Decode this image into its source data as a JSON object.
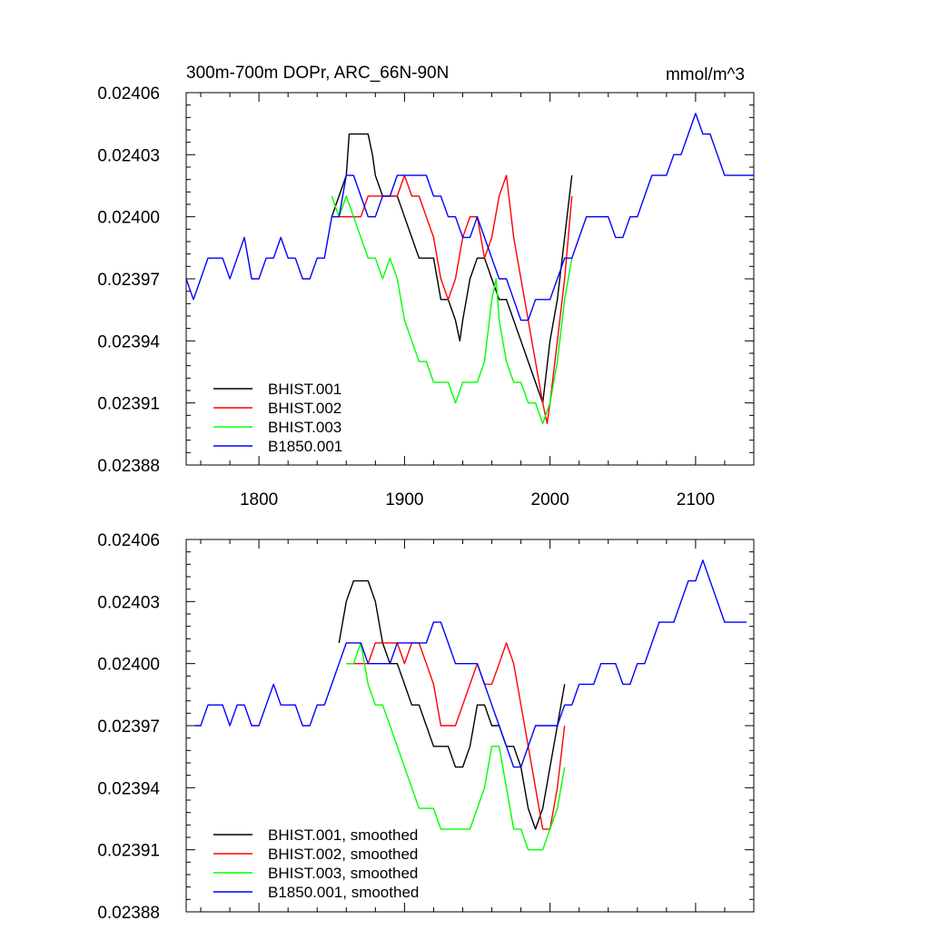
{
  "chart_data": [
    {
      "type": "line",
      "title": "300m-700m DOPr, ARC_66N-90N",
      "units": "mmol/m^3",
      "xlim": [
        1750,
        2140
      ],
      "ylim": [
        0.02388,
        0.02406
      ],
      "xticks": [
        1800,
        1900,
        2000,
        2100
      ],
      "xtick_labels": [
        "1800",
        "1900",
        "2000",
        "2100"
      ],
      "yticks": [
        0.02388,
        0.02391,
        0.02394,
        0.02397,
        0.024,
        0.02403,
        0.02406
      ],
      "ytick_labels": [
        "0.02388",
        "0.02391",
        "0.02394",
        "0.02397",
        "0.02400",
        "0.02403",
        "0.02406"
      ],
      "legend_position": "bottom-left",
      "series": [
        {
          "name": "BHIST.001",
          "color": "#000000",
          "x": [
            1850,
            1855,
            1860,
            1862,
            1865,
            1870,
            1875,
            1878,
            1880,
            1885,
            1890,
            1895,
            1900,
            1905,
            1910,
            1915,
            1920,
            1925,
            1930,
            1935,
            1938,
            1940,
            1945,
            1950,
            1955,
            1960,
            1965,
            1970,
            1975,
            1980,
            1985,
            1990,
            1995,
            2000,
            2005,
            2010,
            2015
          ],
          "y": [
            0.024,
            0.02401,
            0.02402,
            0.02404,
            0.02404,
            0.02404,
            0.02404,
            0.02403,
            0.02402,
            0.02401,
            0.02401,
            0.02401,
            0.024,
            0.02399,
            0.02398,
            0.02398,
            0.02398,
            0.02396,
            0.02396,
            0.02395,
            0.02394,
            0.02395,
            0.02397,
            0.02398,
            0.02398,
            0.02397,
            0.02396,
            0.02396,
            0.02395,
            0.02394,
            0.02393,
            0.02392,
            0.02391,
            0.02394,
            0.02396,
            0.02399,
            0.02402
          ]
        },
        {
          "name": "BHIST.002",
          "color": "#ff0000",
          "x": [
            1855,
            1860,
            1865,
            1870,
            1875,
            1880,
            1885,
            1890,
            1895,
            1900,
            1905,
            1910,
            1915,
            1920,
            1925,
            1930,
            1935,
            1940,
            1945,
            1950,
            1955,
            1960,
            1965,
            1970,
            1975,
            1980,
            1985,
            1990,
            1995,
            1998,
            2000,
            2005,
            2010,
            2015
          ],
          "y": [
            0.024,
            0.024,
            0.024,
            0.024,
            0.02401,
            0.02401,
            0.02401,
            0.02401,
            0.02401,
            0.02402,
            0.02401,
            0.02401,
            0.024,
            0.02399,
            0.02397,
            0.02396,
            0.02397,
            0.02399,
            0.024,
            0.024,
            0.02398,
            0.02399,
            0.02401,
            0.02402,
            0.02399,
            0.02397,
            0.02395,
            0.02393,
            0.02391,
            0.0239,
            0.02391,
            0.02394,
            0.02397,
            0.02401
          ]
        },
        {
          "name": "BHIST.003",
          "color": "#00ff00",
          "x": [
            1850,
            1855,
            1860,
            1865,
            1870,
            1875,
            1880,
            1885,
            1890,
            1895,
            1900,
            1905,
            1910,
            1915,
            1920,
            1925,
            1930,
            1935,
            1940,
            1945,
            1950,
            1955,
            1960,
            1963,
            1965,
            1970,
            1975,
            1980,
            1985,
            1990,
            1995,
            2000,
            2005,
            2010,
            2015
          ],
          "y": [
            0.02401,
            0.024,
            0.02401,
            0.024,
            0.02399,
            0.02398,
            0.02398,
            0.02397,
            0.02398,
            0.02397,
            0.02395,
            0.02394,
            0.02393,
            0.02393,
            0.02392,
            0.02392,
            0.02392,
            0.02391,
            0.02392,
            0.02392,
            0.02392,
            0.02393,
            0.02396,
            0.02397,
            0.02395,
            0.02393,
            0.02392,
            0.02392,
            0.02391,
            0.02391,
            0.0239,
            0.02391,
            0.02393,
            0.02396,
            0.02398
          ]
        },
        {
          "name": "B1850.001",
          "color": "#0000ff",
          "x": [
            1750,
            1755,
            1760,
            1765,
            1770,
            1775,
            1780,
            1785,
            1790,
            1795,
            1800,
            1805,
            1810,
            1815,
            1820,
            1825,
            1830,
            1835,
            1840,
            1845,
            1850,
            1855,
            1860,
            1865,
            1870,
            1875,
            1880,
            1885,
            1890,
            1895,
            1900,
            1905,
            1910,
            1915,
            1920,
            1925,
            1930,
            1935,
            1940,
            1945,
            1950,
            1955,
            1960,
            1965,
            1970,
            1975,
            1980,
            1985,
            1990,
            1995,
            2000,
            2005,
            2010,
            2015,
            2020,
            2025,
            2030,
            2035,
            2040,
            2045,
            2050,
            2055,
            2060,
            2065,
            2070,
            2075,
            2080,
            2085,
            2090,
            2095,
            2100,
            2105,
            2110,
            2115,
            2120,
            2125,
            2130,
            2135,
            2140
          ],
          "y": [
            0.02397,
            0.02396,
            0.02397,
            0.02398,
            0.02398,
            0.02398,
            0.02397,
            0.02398,
            0.02399,
            0.02397,
            0.02397,
            0.02398,
            0.02398,
            0.02399,
            0.02398,
            0.02398,
            0.02397,
            0.02397,
            0.02398,
            0.02398,
            0.024,
            0.024,
            0.02402,
            0.02402,
            0.02401,
            0.024,
            0.024,
            0.02401,
            0.02401,
            0.02402,
            0.02402,
            0.02402,
            0.02402,
            0.02402,
            0.02401,
            0.02401,
            0.024,
            0.024,
            0.02399,
            0.02399,
            0.024,
            0.02399,
            0.02398,
            0.02397,
            0.02397,
            0.02396,
            0.02395,
            0.02395,
            0.02396,
            0.02396,
            0.02396,
            0.02397,
            0.02398,
            0.02398,
            0.02399,
            0.024,
            0.024,
            0.024,
            0.024,
            0.02399,
            0.02399,
            0.024,
            0.024,
            0.02401,
            0.02402,
            0.02402,
            0.02402,
            0.02403,
            0.02403,
            0.02404,
            0.02405,
            0.02404,
            0.02404,
            0.02403,
            0.02402,
            0.02402,
            0.02402,
            0.02402,
            0.02402
          ]
        }
      ]
    },
    {
      "type": "line",
      "title": "",
      "units": "",
      "xlim": [
        1750,
        2140
      ],
      "ylim": [
        0.02388,
        0.02406
      ],
      "xticks": [
        1800,
        1900,
        2000,
        2100
      ],
      "xtick_labels": [],
      "yticks": [
        0.02388,
        0.02391,
        0.02394,
        0.02397,
        0.024,
        0.02403,
        0.02406
      ],
      "ytick_labels": [
        "0.02388",
        "0.02391",
        "0.02394",
        "0.02397",
        "0.02400",
        "0.02403",
        "0.02406"
      ],
      "legend_position": "bottom-left",
      "series": [
        {
          "name": "BHIST.001, smoothed",
          "color": "#000000",
          "x": [
            1855,
            1860,
            1865,
            1870,
            1875,
            1880,
            1885,
            1890,
            1895,
            1900,
            1905,
            1910,
            1915,
            1920,
            1925,
            1930,
            1935,
            1940,
            1945,
            1950,
            1955,
            1960,
            1965,
            1970,
            1975,
            1980,
            1985,
            1990,
            1995,
            2000,
            2005,
            2010
          ],
          "y": [
            0.02401,
            0.02403,
            0.02404,
            0.02404,
            0.02404,
            0.02403,
            0.02401,
            0.024,
            0.024,
            0.02399,
            0.02398,
            0.02398,
            0.02397,
            0.02396,
            0.02396,
            0.02396,
            0.02395,
            0.02395,
            0.02396,
            0.02398,
            0.02398,
            0.02397,
            0.02397,
            0.02396,
            0.02396,
            0.02395,
            0.02393,
            0.02392,
            0.02393,
            0.02395,
            0.02397,
            0.02399
          ]
        },
        {
          "name": "BHIST.002, smoothed",
          "color": "#ff0000",
          "x": [
            1860,
            1865,
            1870,
            1875,
            1880,
            1885,
            1890,
            1895,
            1900,
            1905,
            1910,
            1915,
            1920,
            1925,
            1930,
            1935,
            1940,
            1945,
            1950,
            1955,
            1960,
            1965,
            1970,
            1975,
            1980,
            1985,
            1990,
            1995,
            2000,
            2005,
            2010
          ],
          "y": [
            0.024,
            0.024,
            0.024,
            0.024,
            0.02401,
            0.02401,
            0.02401,
            0.02401,
            0.024,
            0.02401,
            0.02401,
            0.024,
            0.02399,
            0.02397,
            0.02397,
            0.02397,
            0.02398,
            0.02399,
            0.024,
            0.02399,
            0.02399,
            0.024,
            0.02401,
            0.024,
            0.02398,
            0.02396,
            0.02394,
            0.02392,
            0.02392,
            0.02394,
            0.02397
          ]
        },
        {
          "name": "BHIST.003, smoothed",
          "color": "#00ff00",
          "x": [
            1860,
            1865,
            1870,
            1875,
            1880,
            1885,
            1890,
            1895,
            1900,
            1905,
            1910,
            1915,
            1920,
            1925,
            1930,
            1935,
            1940,
            1945,
            1950,
            1955,
            1960,
            1965,
            1970,
            1975,
            1980,
            1985,
            1990,
            1995,
            2000,
            2005,
            2010
          ],
          "y": [
            0.024,
            0.024,
            0.02401,
            0.02399,
            0.02398,
            0.02398,
            0.02397,
            0.02396,
            0.02395,
            0.02394,
            0.02393,
            0.02393,
            0.02393,
            0.02392,
            0.02392,
            0.02392,
            0.02392,
            0.02392,
            0.02393,
            0.02394,
            0.02396,
            0.02396,
            0.02394,
            0.02392,
            0.02392,
            0.02391,
            0.02391,
            0.02391,
            0.02392,
            0.02393,
            0.02395
          ]
        },
        {
          "name": "B1850.001, smoothed",
          "color": "#0000ff",
          "x": [
            1756,
            1760,
            1765,
            1770,
            1775,
            1780,
            1785,
            1790,
            1795,
            1800,
            1805,
            1810,
            1815,
            1820,
            1825,
            1830,
            1835,
            1840,
            1845,
            1850,
            1855,
            1860,
            1865,
            1870,
            1875,
            1880,
            1885,
            1890,
            1895,
            1900,
            1905,
            1910,
            1915,
            1920,
            1925,
            1930,
            1935,
            1940,
            1945,
            1950,
            1955,
            1960,
            1965,
            1970,
            1975,
            1980,
            1985,
            1990,
            1995,
            2000,
            2005,
            2010,
            2015,
            2020,
            2025,
            2030,
            2035,
            2040,
            2045,
            2050,
            2055,
            2060,
            2065,
            2070,
            2075,
            2080,
            2085,
            2090,
            2095,
            2100,
            2105,
            2110,
            2115,
            2120,
            2125,
            2130,
            2135
          ],
          "y": [
            0.02397,
            0.02397,
            0.02398,
            0.02398,
            0.02398,
            0.02397,
            0.02398,
            0.02398,
            0.02397,
            0.02397,
            0.02398,
            0.02399,
            0.02398,
            0.02398,
            0.02398,
            0.02397,
            0.02397,
            0.02398,
            0.02398,
            0.02399,
            0.024,
            0.02401,
            0.02401,
            0.02401,
            0.024,
            0.024,
            0.024,
            0.024,
            0.02401,
            0.02401,
            0.02401,
            0.02401,
            0.02401,
            0.02402,
            0.02402,
            0.02401,
            0.024,
            0.024,
            0.024,
            0.024,
            0.02399,
            0.02398,
            0.02397,
            0.02396,
            0.02395,
            0.02395,
            0.02396,
            0.02397,
            0.02397,
            0.02397,
            0.02397,
            0.02398,
            0.02398,
            0.02399,
            0.02399,
            0.02399,
            0.024,
            0.024,
            0.024,
            0.02399,
            0.02399,
            0.024,
            0.024,
            0.02401,
            0.02402,
            0.02402,
            0.02402,
            0.02403,
            0.02404,
            0.02404,
            0.02405,
            0.02404,
            0.02403,
            0.02402,
            0.02402,
            0.02402,
            0.02402
          ]
        }
      ]
    }
  ]
}
